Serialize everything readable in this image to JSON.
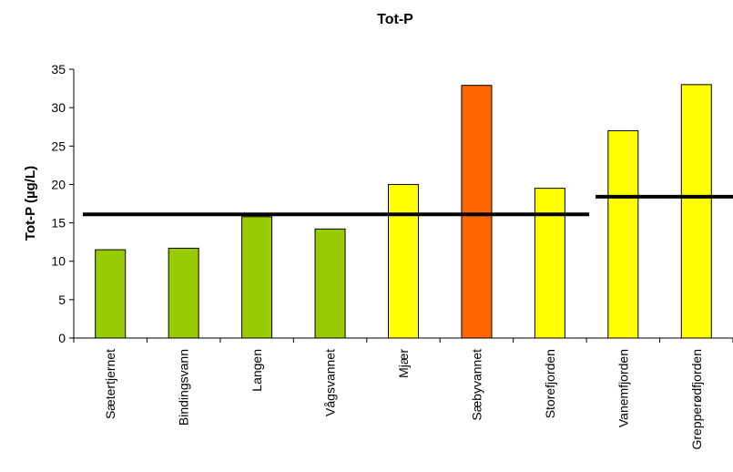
{
  "chart_data": {
    "type": "bar",
    "title": "Tot-P",
    "ylabel": "Tot-P (µg/L)",
    "xlabel": "",
    "ylim": [
      0,
      35
    ],
    "yticks": [
      0,
      5,
      10,
      15,
      20,
      25,
      30,
      35
    ],
    "grid": false,
    "legend": "none",
    "categories": [
      "Sætertjernet",
      "Bindingsvann",
      "Langen",
      "Vågsvannet",
      "Mjær",
      "Sæbyvannet",
      "Storefjorden",
      "Vanemfjorden",
      "Grepperødfjorden"
    ],
    "values": [
      11.5,
      11.7,
      15.8,
      14.2,
      20.0,
      32.9,
      19.5,
      27.0,
      33.0
    ],
    "bar_colors": [
      "#99cc00",
      "#99cc00",
      "#99cc00",
      "#99cc00",
      "#ffff00",
      "#ff6600",
      "#ffff00",
      "#ffff00",
      "#ffff00"
    ],
    "reference_lines": [
      {
        "value": 16.1,
        "from_category": "Sætertjernet",
        "to_category": "Storefjorden"
      },
      {
        "value": 18.4,
        "from_category": "Vanemfjorden",
        "to_category": "Grepperødfjorden"
      }
    ]
  }
}
